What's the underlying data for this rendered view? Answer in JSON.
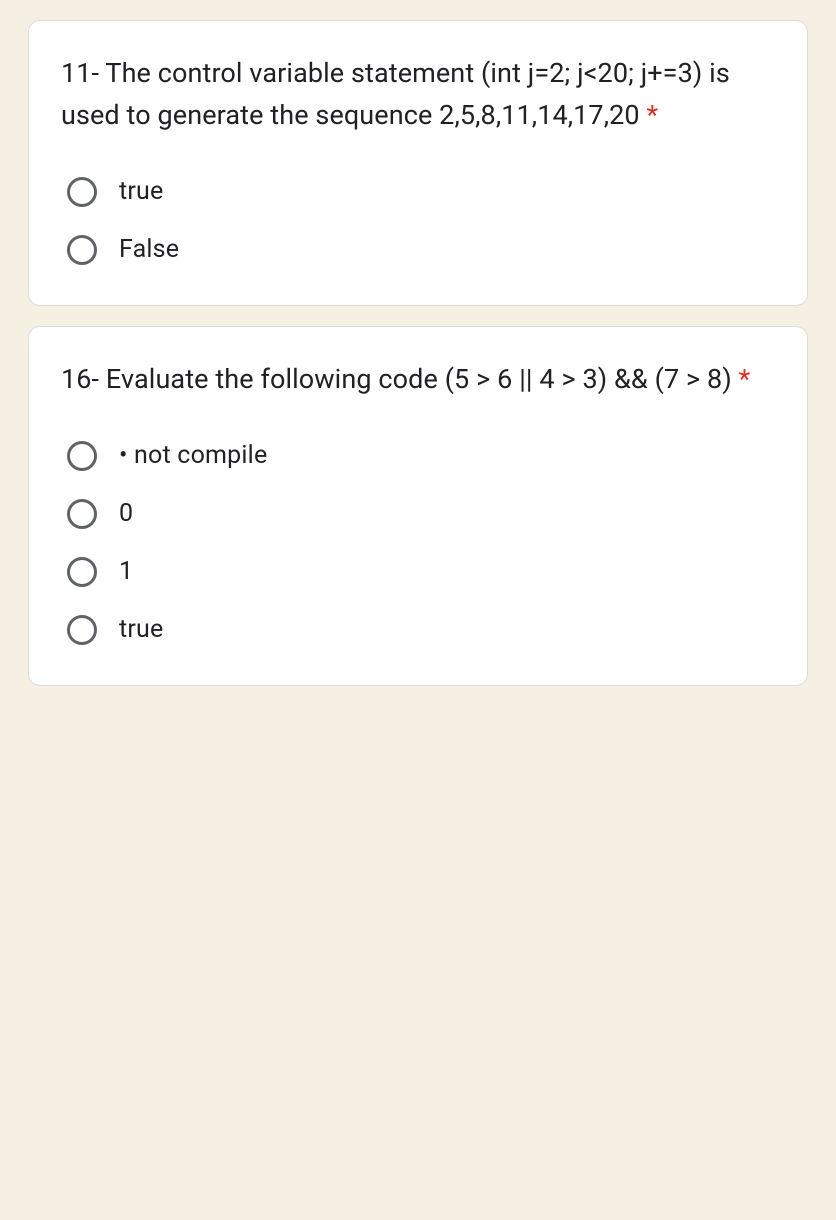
{
  "questions": [
    {
      "text": "11- The control variable statement (int j=2; j<20; j+=3) is used to generate the sequence 2,5,8,11,14,17,20 ",
      "required": "*",
      "options": [
        {
          "label": "true"
        },
        {
          "label": "False"
        }
      ]
    },
    {
      "text": "16- Evaluate the following code (5 > 6 || 4 > 3) && (7 > 8) ",
      "required": "*",
      "options": [
        {
          "label": "• not compile"
        },
        {
          "label": "0"
        },
        {
          "label": "1"
        },
        {
          "label": "true"
        }
      ]
    }
  ],
  "colors": {
    "background": "#f5f0e1",
    "card_bg": "#ffffff",
    "card_border": "#dadce0",
    "text": "#202124",
    "radio_border": "#5f6368",
    "required": "#d93025"
  }
}
